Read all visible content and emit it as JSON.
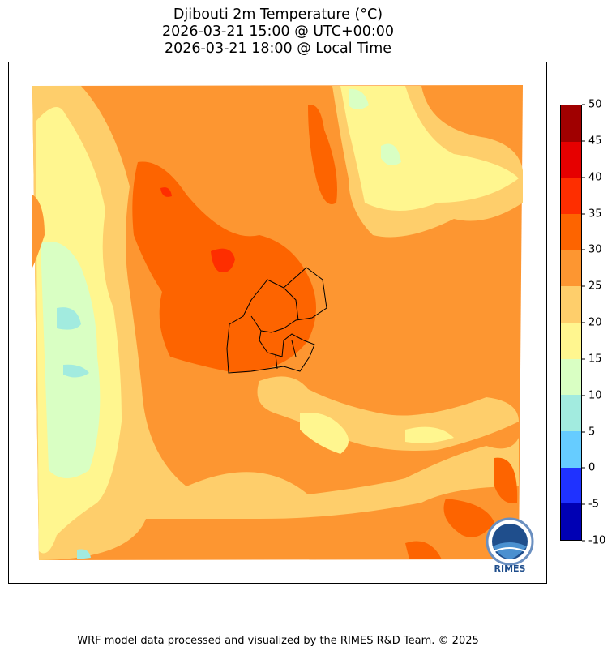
{
  "title": {
    "line1": "Djibouti 2m Temperature (°C)",
    "line2": "2026-03-21 15:00 @ UTC+00:00",
    "line3": "2026-03-21 18:00 @ Local Time"
  },
  "colorbar": {
    "levels": [
      "-10",
      "-5",
      "0",
      "5",
      "10",
      "15",
      "20",
      "25",
      "30",
      "35",
      "40",
      "45",
      "50"
    ],
    "colors": [
      "#0000b4",
      "#1f32ff",
      "#66ccff",
      "#a2ebdf",
      "#d9ffc3",
      "#fff68f",
      "#fece6b",
      "#fd9631",
      "#fd6400",
      "#fe2e00",
      "#e60000",
      "#a00000"
    ]
  },
  "logo": {
    "text": "RIMES"
  },
  "footer": "WRF model data processed and visualized by the RIMES R&D Team. © 2025"
}
